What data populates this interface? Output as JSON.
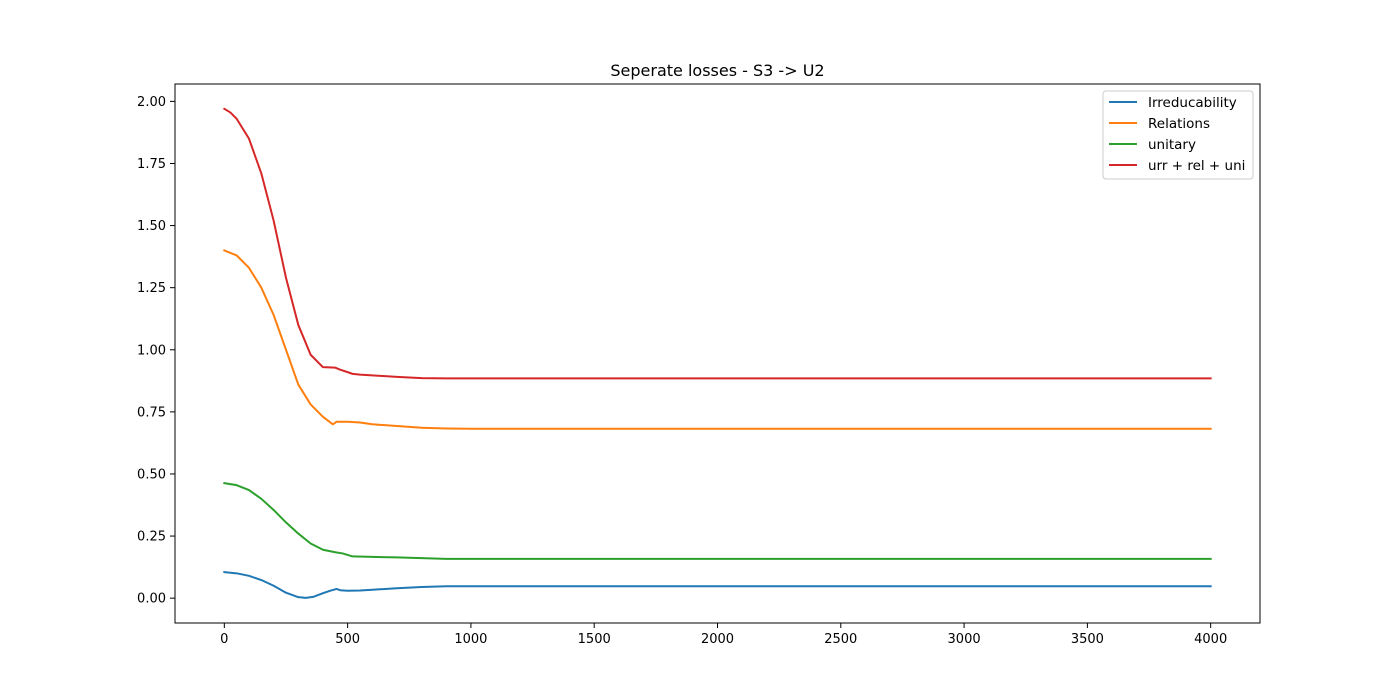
{
  "chart_data": {
    "type": "line",
    "title": "Seperate losses - S3 -> U2",
    "xlabel": "",
    "ylabel": "",
    "xlim": [
      -200,
      4200
    ],
    "ylim": [
      -0.1,
      2.07
    ],
    "xticks": [
      0,
      500,
      1000,
      1500,
      2000,
      2500,
      3000,
      3500,
      4000
    ],
    "xtick_labels": [
      "0",
      "500",
      "1000",
      "1500",
      "2000",
      "2500",
      "3000",
      "3500",
      "4000"
    ],
    "yticks": [
      0.0,
      0.25,
      0.5,
      0.75,
      1.0,
      1.25,
      1.5,
      1.75,
      2.0
    ],
    "ytick_labels": [
      "0.00",
      "0.25",
      "0.50",
      "0.75",
      "1.00",
      "1.25",
      "1.50",
      "1.75",
      "2.00"
    ],
    "grid": false,
    "legend_position": "top-right",
    "series": [
      {
        "name": "Irreducability",
        "color": "#1f77b4",
        "x": [
          0,
          50,
          100,
          150,
          200,
          250,
          300,
          330,
          360,
          400,
          430,
          455,
          470,
          500,
          550,
          600,
          700,
          800,
          900,
          1000,
          2000,
          3000,
          4000
        ],
        "y": [
          0.105,
          0.1,
          0.09,
          0.073,
          0.05,
          0.022,
          0.004,
          0.001,
          0.005,
          0.02,
          0.03,
          0.037,
          0.032,
          0.03,
          0.031,
          0.034,
          0.04,
          0.045,
          0.048,
          0.048,
          0.048,
          0.048,
          0.048
        ]
      },
      {
        "name": "Relations",
        "color": "#ff7f0e",
        "x": [
          0,
          50,
          100,
          150,
          200,
          250,
          300,
          350,
          400,
          440,
          455,
          500,
          550,
          600,
          700,
          800,
          900,
          1000,
          2000,
          3000,
          4000
        ],
        "y": [
          1.4,
          1.38,
          1.33,
          1.25,
          1.14,
          1.0,
          0.86,
          0.78,
          0.73,
          0.7,
          0.71,
          0.71,
          0.707,
          0.7,
          0.693,
          0.686,
          0.683,
          0.682,
          0.682,
          0.682,
          0.682
        ]
      },
      {
        "name": "unitary",
        "color": "#2ca02c",
        "x": [
          0,
          50,
          100,
          150,
          200,
          250,
          300,
          350,
          400,
          450,
          480,
          520,
          600,
          700,
          800,
          900,
          1000,
          2000,
          3000,
          4000
        ],
        "y": [
          0.463,
          0.455,
          0.435,
          0.4,
          0.355,
          0.305,
          0.26,
          0.22,
          0.195,
          0.185,
          0.18,
          0.168,
          0.166,
          0.164,
          0.161,
          0.158,
          0.158,
          0.158,
          0.158,
          0.158
        ]
      },
      {
        "name": "urr + rel + uni",
        "color": "#d62728",
        "x": [
          0,
          25,
          50,
          100,
          150,
          200,
          250,
          300,
          350,
          400,
          450,
          470,
          500,
          520,
          550,
          600,
          700,
          800,
          900,
          1000,
          2000,
          3000,
          4000
        ],
        "y": [
          1.97,
          1.955,
          1.93,
          1.85,
          1.71,
          1.52,
          1.29,
          1.1,
          0.98,
          0.93,
          0.928,
          0.92,
          0.91,
          0.903,
          0.9,
          0.897,
          0.891,
          0.886,
          0.885,
          0.885,
          0.885,
          0.885,
          0.885
        ]
      }
    ]
  }
}
